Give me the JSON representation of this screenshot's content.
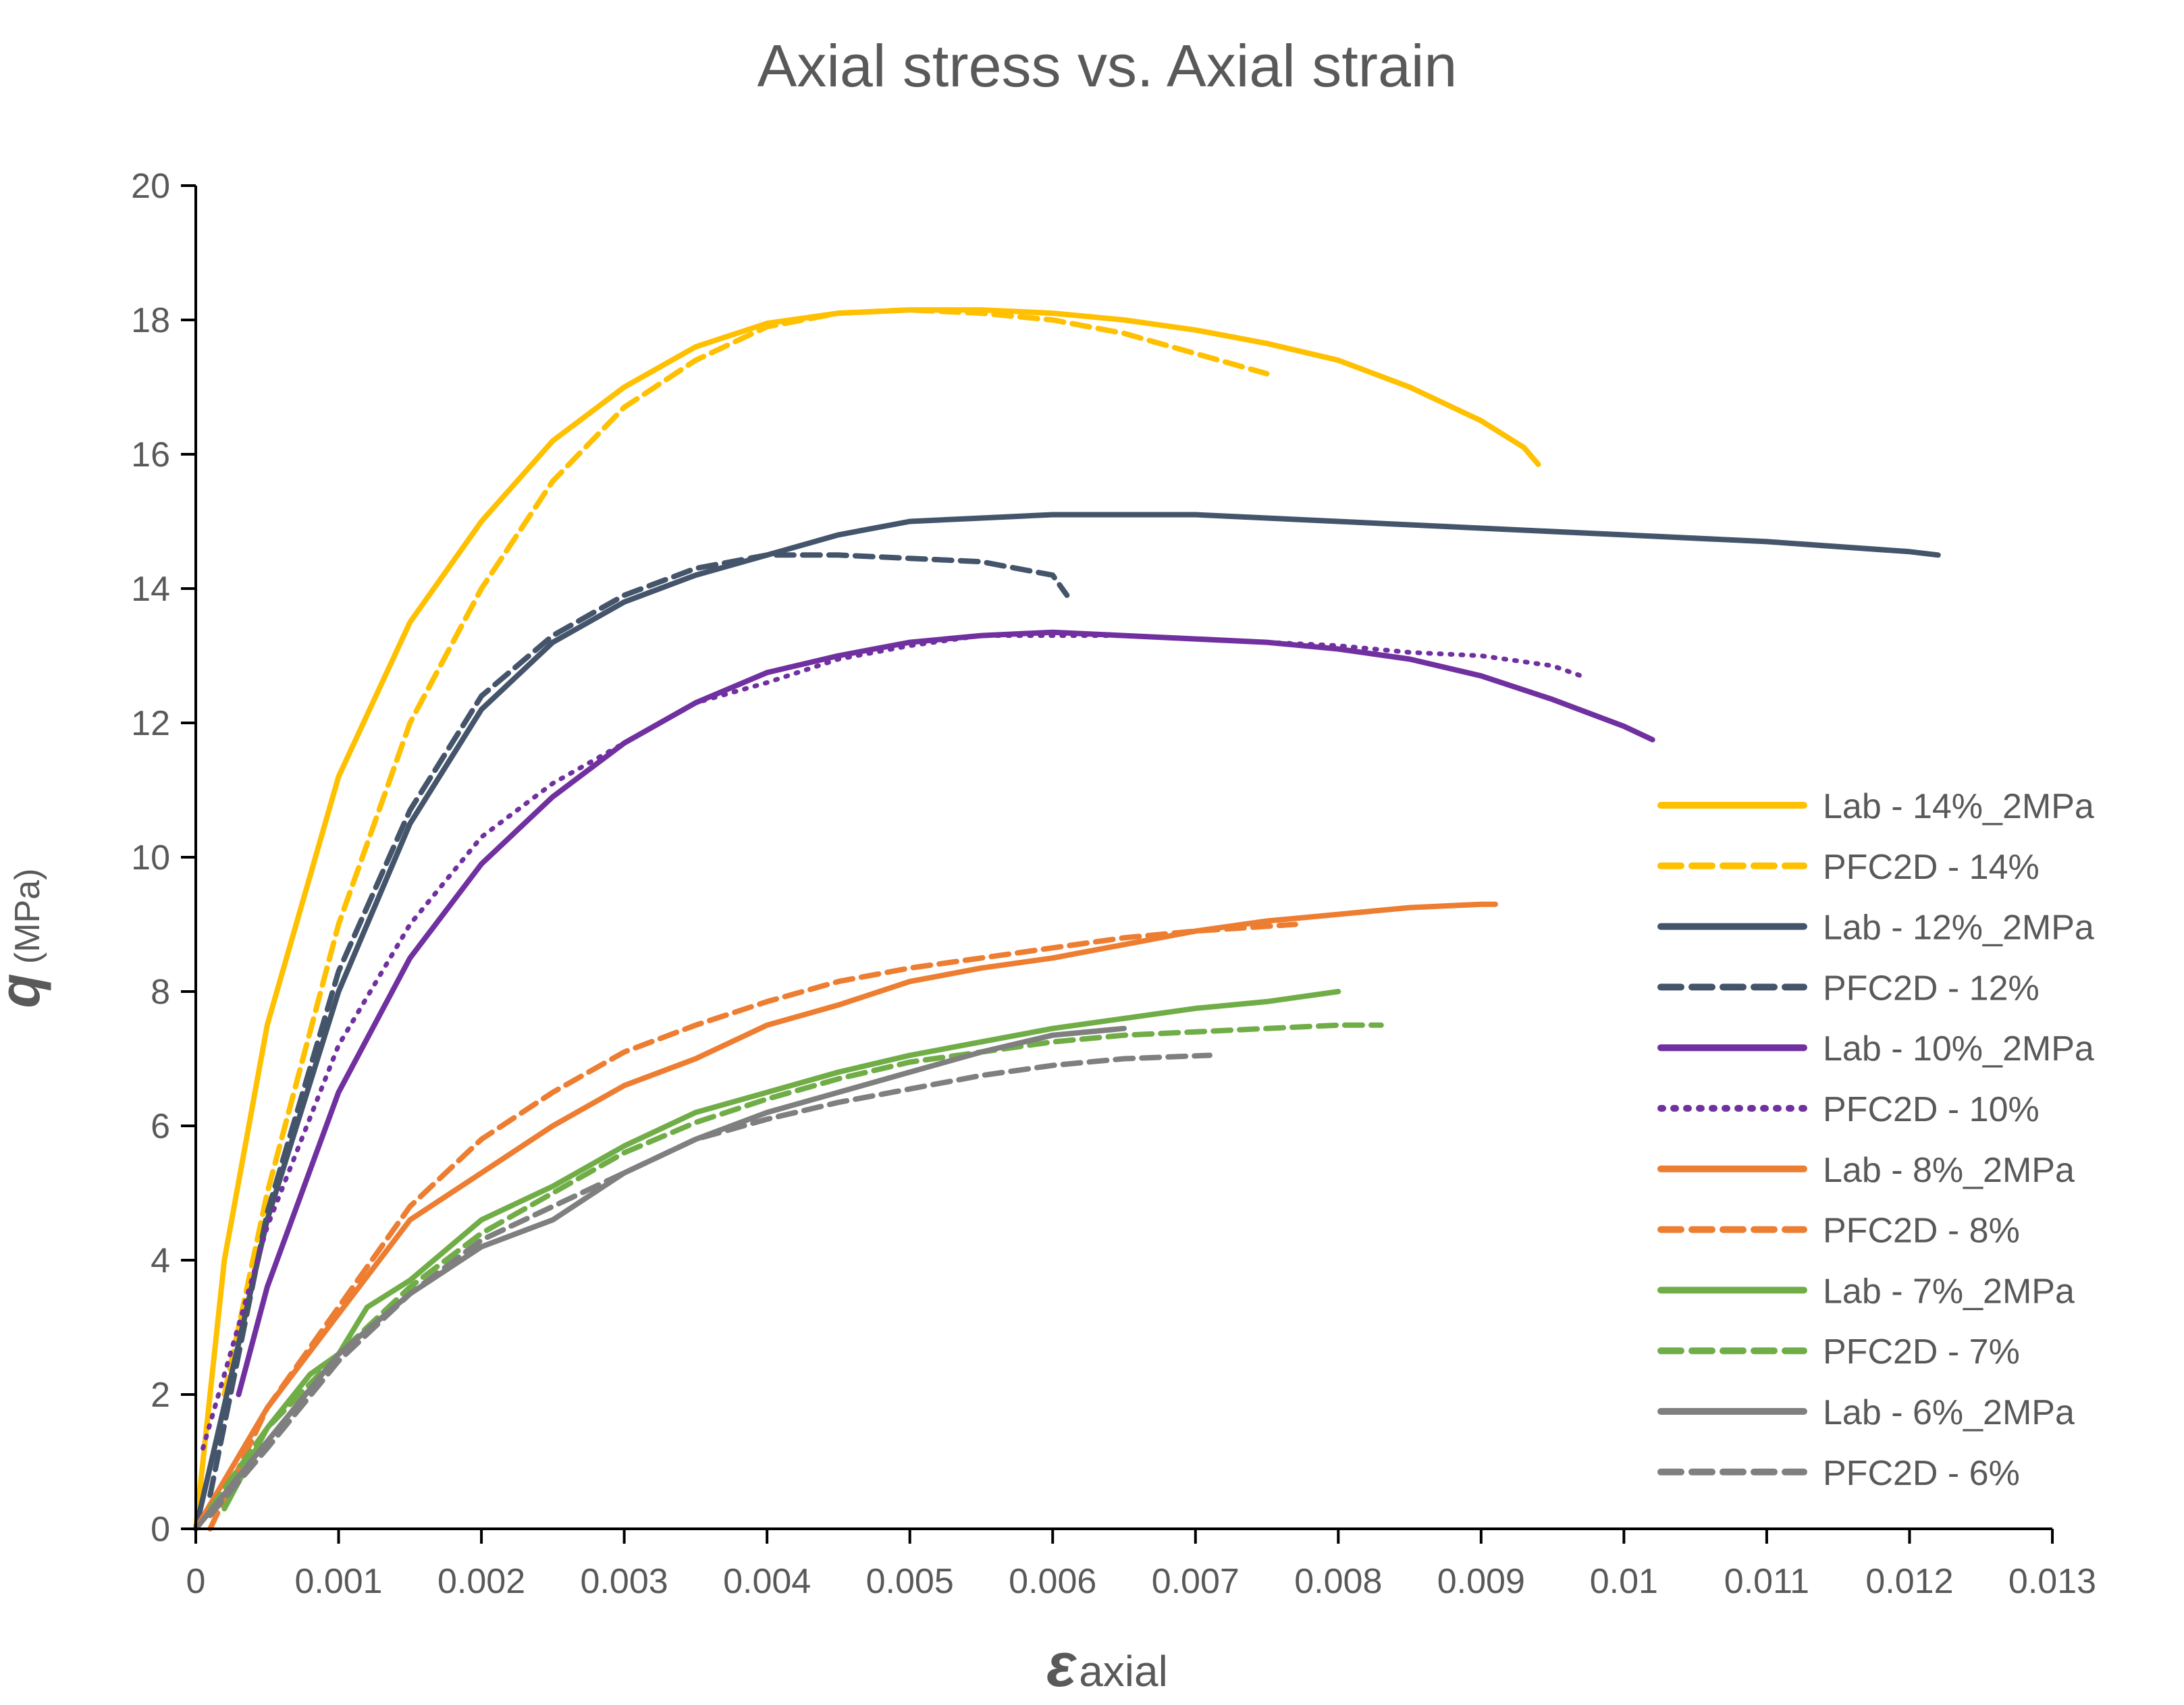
{
  "chart_data": {
    "type": "line",
    "title": "Axial stress vs. Axial strain",
    "ylabel": {
      "symbol": "q",
      "unit": "(MPa)"
    },
    "xlabel": {
      "symbol": "ε",
      "subscript": "axial"
    },
    "xlim": [
      0,
      0.013
    ],
    "ylim": [
      0,
      20
    ],
    "x_ticks": [
      "0",
      "0.001",
      "0.002",
      "0.003",
      "0.004",
      "0.005",
      "0.006",
      "0.007",
      "0.008",
      "0.009",
      "0.01",
      "0.011",
      "0.012",
      "0.013"
    ],
    "y_ticks": [
      "0",
      "2",
      "4",
      "6",
      "8",
      "10",
      "12",
      "14",
      "16",
      "18",
      "20"
    ],
    "grid": false,
    "legend_position": "right",
    "series": [
      {
        "name": "Lab - 14%_2MPa",
        "color": "#FFC000",
        "style": "solid",
        "x": [
          0,
          0.0002,
          0.0005,
          0.001,
          0.0015,
          0.002,
          0.0025,
          0.003,
          0.0035,
          0.004,
          0.0045,
          0.005,
          0.0055,
          0.006,
          0.0065,
          0.007,
          0.0075,
          0.008,
          0.0085,
          0.009,
          0.0093,
          0.0094
        ],
        "y": [
          0,
          4.0,
          7.5,
          11.2,
          13.5,
          15.0,
          16.2,
          17.0,
          17.6,
          17.95,
          18.1,
          18.15,
          18.15,
          18.1,
          18.0,
          17.85,
          17.65,
          17.4,
          17.0,
          16.5,
          16.1,
          15.85
        ]
      },
      {
        "name": "PFC2D - 14%",
        "color": "#FFC000",
        "style": "dashed",
        "x": [
          0.0002,
          0.0005,
          0.001,
          0.0015,
          0.002,
          0.0025,
          0.003,
          0.0035,
          0.004,
          0.0045,
          0.005,
          0.0055,
          0.006,
          0.0065,
          0.007,
          0.0075
        ],
        "y": [
          2.0,
          5.0,
          9.0,
          12.0,
          14.0,
          15.6,
          16.7,
          17.4,
          17.9,
          18.1,
          18.15,
          18.1,
          18.0,
          17.8,
          17.5,
          17.2
        ]
      },
      {
        "name": "Lab - 12%_2MPa",
        "color": "#44546A",
        "style": "solid",
        "x": [
          0,
          0.0005,
          0.001,
          0.0015,
          0.002,
          0.0025,
          0.003,
          0.0035,
          0.004,
          0.0045,
          0.005,
          0.0055,
          0.006,
          0.007,
          0.008,
          0.009,
          0.01,
          0.011,
          0.012,
          0.0122
        ],
        "y": [
          0,
          4.6,
          8.0,
          10.5,
          12.2,
          13.2,
          13.8,
          14.2,
          14.5,
          14.8,
          15.0,
          15.05,
          15.1,
          15.1,
          15.0,
          14.9,
          14.8,
          14.7,
          14.55,
          14.5
        ]
      },
      {
        "name": "PFC2D - 12%",
        "color": "#44546A",
        "style": "dashed",
        "x": [
          0.0001,
          0.0005,
          0.001,
          0.0015,
          0.002,
          0.0025,
          0.003,
          0.0035,
          0.004,
          0.0045,
          0.005,
          0.0055,
          0.006,
          0.0061
        ],
        "y": [
          0.5,
          4.7,
          8.3,
          10.7,
          12.4,
          13.3,
          13.9,
          14.3,
          14.5,
          14.5,
          14.45,
          14.4,
          14.2,
          13.9
        ]
      },
      {
        "name": "Lab - 10%_2MPa",
        "color": "#7030A0",
        "style": "solid",
        "x": [
          0.0003,
          0.0005,
          0.001,
          0.0015,
          0.002,
          0.0025,
          0.003,
          0.0035,
          0.004,
          0.0045,
          0.005,
          0.0055,
          0.006,
          0.0065,
          0.007,
          0.0075,
          0.008,
          0.0085,
          0.009,
          0.0095,
          0.01,
          0.0102
        ],
        "y": [
          2.0,
          3.6,
          6.5,
          8.5,
          9.9,
          10.9,
          11.7,
          12.3,
          12.75,
          13.0,
          13.2,
          13.3,
          13.35,
          13.3,
          13.25,
          13.2,
          13.1,
          12.95,
          12.7,
          12.35,
          11.95,
          11.75
        ]
      },
      {
        "name": "PFC2D - 10%",
        "color": "#7030A0",
        "style": "dotted",
        "x": [
          5e-05,
          0.0005,
          0.001,
          0.0015,
          0.002,
          0.0025,
          0.003,
          0.0035,
          0.004,
          0.0045,
          0.005,
          0.0055,
          0.006,
          0.0065,
          0.007,
          0.0075,
          0.008,
          0.0085,
          0.009,
          0.0095,
          0.0097
        ],
        "y": [
          1.2,
          4.5,
          7.2,
          9.0,
          10.3,
          11.1,
          11.7,
          12.3,
          12.6,
          12.95,
          13.15,
          13.3,
          13.3,
          13.3,
          13.25,
          13.2,
          13.15,
          13.05,
          13.0,
          12.85,
          12.7
        ]
      },
      {
        "name": "Lab - 8%_2MPa",
        "color": "#ED7D31",
        "style": "solid",
        "x": [
          0,
          0.0005,
          0.001,
          0.0015,
          0.002,
          0.0025,
          0.003,
          0.0035,
          0.004,
          0.0045,
          0.005,
          0.0055,
          0.006,
          0.0065,
          0.007,
          0.0075,
          0.008,
          0.0085,
          0.009,
          0.0091
        ],
        "y": [
          0,
          1.8,
          3.2,
          4.6,
          5.3,
          6.0,
          6.6,
          7.0,
          7.5,
          7.8,
          8.15,
          8.35,
          8.5,
          8.7,
          8.9,
          9.05,
          9.15,
          9.25,
          9.3,
          9.3
        ]
      },
      {
        "name": "PFC2D - 8%",
        "color": "#ED7D31",
        "style": "dashed",
        "x": [
          0.0001,
          0.0005,
          0.001,
          0.0015,
          0.002,
          0.0025,
          0.003,
          0.0035,
          0.004,
          0.0045,
          0.005,
          0.0055,
          0.006,
          0.0065,
          0.007,
          0.0077
        ],
        "y": [
          0,
          1.8,
          3.3,
          4.8,
          5.8,
          6.5,
          7.1,
          7.5,
          7.85,
          8.15,
          8.35,
          8.5,
          8.65,
          8.8,
          8.9,
          9.0
        ]
      },
      {
        "name": "Lab - 7%_2MPa",
        "color": "#70AD47",
        "style": "solid",
        "x": [
          0.0002,
          0.0005,
          0.0008,
          0.001,
          0.0012,
          0.0015,
          0.002,
          0.0025,
          0.003,
          0.0035,
          0.004,
          0.0045,
          0.005,
          0.0055,
          0.006,
          0.0065,
          0.007,
          0.0075,
          0.008
        ],
        "y": [
          0.3,
          1.5,
          2.3,
          2.6,
          3.3,
          3.7,
          4.6,
          5.1,
          5.7,
          6.2,
          6.5,
          6.8,
          7.05,
          7.25,
          7.45,
          7.6,
          7.75,
          7.85,
          8.0
        ]
      },
      {
        "name": "PFC2D - 7%",
        "color": "#70AD47",
        "style": "dashed",
        "x": [
          0.0001,
          0.0005,
          0.001,
          0.0015,
          0.002,
          0.0025,
          0.003,
          0.0035,
          0.004,
          0.0045,
          0.005,
          0.0055,
          0.006,
          0.0065,
          0.007,
          0.0075,
          0.008,
          0.0083
        ],
        "y": [
          0.3,
          1.5,
          2.6,
          3.6,
          4.4,
          5.0,
          5.6,
          6.05,
          6.4,
          6.7,
          6.95,
          7.1,
          7.25,
          7.35,
          7.4,
          7.45,
          7.5,
          7.5
        ]
      },
      {
        "name": "Lab - 6%_2MPa",
        "color": "#7F7F7F",
        "style": "solid",
        "x": [
          0,
          0.0005,
          0.001,
          0.0015,
          0.002,
          0.0025,
          0.003,
          0.0035,
          0.004,
          0.0045,
          0.005,
          0.0055,
          0.006,
          0.0065
        ],
        "y": [
          0,
          1.3,
          2.6,
          3.5,
          4.2,
          4.6,
          5.3,
          5.8,
          6.2,
          6.5,
          6.8,
          7.1,
          7.35,
          7.45
        ]
      },
      {
        "name": "PFC2D - 6%",
        "color": "#7F7F7F",
        "style": "dashed",
        "x": [
          0.0001,
          0.0005,
          0.001,
          0.0015,
          0.002,
          0.0025,
          0.003,
          0.0035,
          0.004,
          0.0045,
          0.005,
          0.0055,
          0.006,
          0.0065,
          0.0071
        ],
        "y": [
          0.2,
          1.2,
          2.5,
          3.5,
          4.3,
          4.8,
          5.3,
          5.8,
          6.1,
          6.35,
          6.55,
          6.75,
          6.9,
          7.0,
          7.05
        ]
      }
    ]
  }
}
